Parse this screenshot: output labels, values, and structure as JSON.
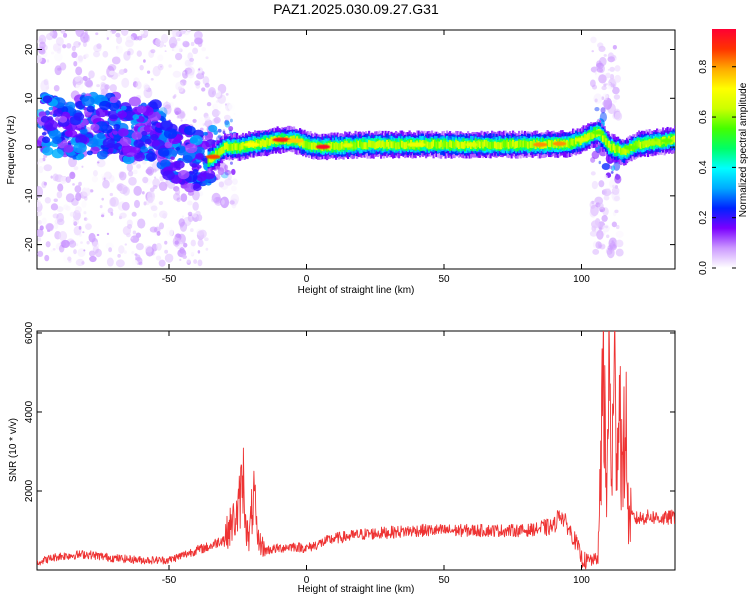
{
  "title": "PAZ1.2025.030.09.27.G31",
  "chart_data": [
    {
      "type": "heatmap",
      "xlabel": "Height of straight line (km)",
      "ylabel": "Frequency (Hz)",
      "xlim": [
        -98,
        134
      ],
      "ylim": [
        -25,
        24
      ],
      "xticks": [
        "-50",
        "0",
        "50",
        "100"
      ],
      "xtick_values": [
        -50,
        0,
        50,
        100
      ],
      "yticks": [
        "-20",
        "-10",
        "0",
        "10",
        "20"
      ],
      "ytick_values": [
        -20,
        -10,
        0,
        10,
        20
      ],
      "colorbar": {
        "label": "Normalized spectral amplitude",
        "ticks": [
          "0.0",
          "0.2",
          "0.4",
          "0.6",
          "0.8"
        ],
        "tick_values": [
          0.0,
          0.2,
          0.4,
          0.6,
          0.8
        ],
        "range": [
          0,
          0.95
        ],
        "colormap": [
          "#ffffff",
          "#cc99ff",
          "#7a00ff",
          "#0022ff",
          "#00aaff",
          "#00ffff",
          "#00ff66",
          "#44ff00",
          "#ccff00",
          "#ffff00",
          "#ffaa00",
          "#ff3300",
          "#ff0033"
        ]
      },
      "ridge": {
        "x": [
          -98,
          -90,
          -85,
          -80,
          -75,
          -70,
          -65,
          -60,
          -55,
          -50,
          -45,
          -40,
          -37,
          -34,
          -32,
          -30,
          -25,
          -20,
          -15,
          -10,
          -5,
          0,
          5,
          10,
          20,
          30,
          40,
          50,
          60,
          70,
          80,
          85,
          90,
          95,
          100,
          103,
          106,
          110,
          115,
          120,
          134
        ],
        "y": [
          6,
          4,
          3,
          5,
          4,
          5,
          3,
          4,
          3,
          0,
          -2,
          -3,
          -3,
          -2,
          -1,
          0,
          0,
          0.5,
          1,
          1.5,
          1.5,
          0.5,
          0,
          0.2,
          0.5,
          0.5,
          0.5,
          0.5,
          0.5,
          0.5,
          0.5,
          0.5,
          0.7,
          0.7,
          1.5,
          2.5,
          3,
          0,
          -1,
          0.5,
          1.5
        ]
      },
      "grid": false
    },
    {
      "type": "line",
      "xlabel": "Height of straight line (km)",
      "ylabel": "SNR (10 * v/v)",
      "xlim": [
        -98,
        134
      ],
      "ylim": [
        0,
        6050
      ],
      "xticks": [
        "-50",
        "0",
        "50",
        "100"
      ],
      "xtick_values": [
        -50,
        0,
        50,
        100
      ],
      "yticks": [
        "2000",
        "4000",
        "6000"
      ],
      "ytick_values": [
        2000,
        4000,
        6000
      ],
      "color": "#ee3333",
      "grid": false,
      "series": [
        {
          "x": [
            -98,
            -90,
            -80,
            -70,
            -60,
            -50,
            -40,
            -35,
            -30,
            -27,
            -25,
            -23,
            -22,
            -21,
            -20,
            -19,
            -18,
            -15,
            -10,
            -5,
            0,
            10,
            20,
            30,
            40,
            50,
            60,
            70,
            80,
            85,
            90,
            92,
            95,
            98,
            100,
            102,
            104,
            106,
            107,
            108,
            109,
            110,
            111,
            112,
            113,
            114,
            115,
            116,
            117,
            118,
            120,
            125,
            130,
            134
          ],
          "y": [
            200,
            350,
            400,
            300,
            250,
            250,
            500,
            600,
            800,
            1200,
            1400,
            2400,
            1200,
            700,
            1400,
            1900,
            800,
            500,
            550,
            600,
            550,
            800,
            900,
            950,
            1000,
            1000,
            1000,
            1000,
            1000,
            1050,
            1100,
            1450,
            1100,
            700,
            300,
            200,
            250,
            300,
            2400,
            6000,
            1500,
            5100,
            2500,
            4600,
            3500,
            4400,
            2000,
            4300,
            1300,
            1350,
            1300,
            1350,
            1300,
            1350
          ]
        }
      ]
    }
  ]
}
